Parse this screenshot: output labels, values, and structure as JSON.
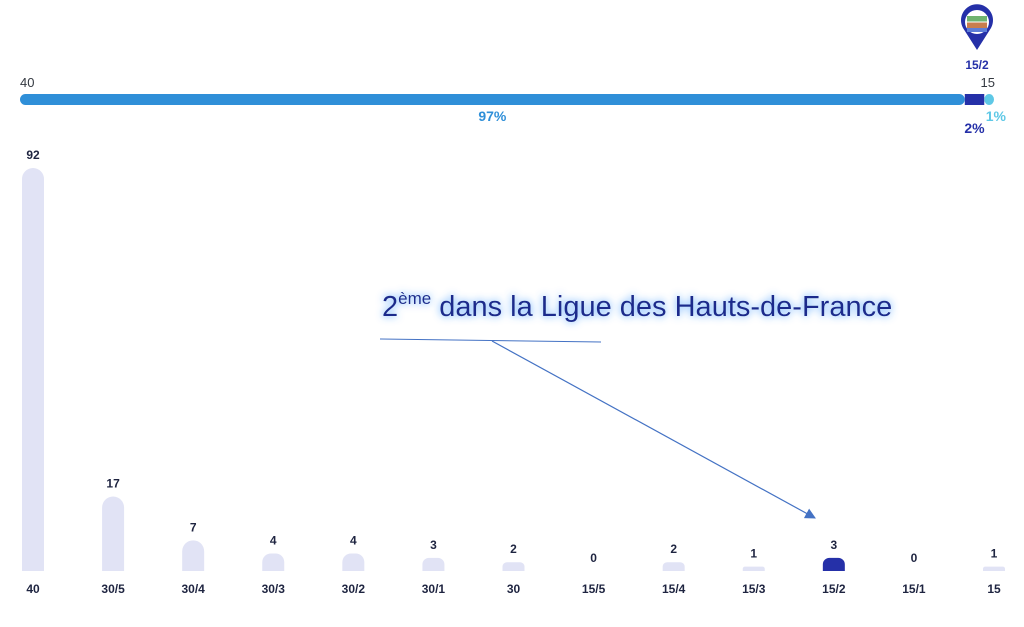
{
  "range_bar": {
    "left_label": "40",
    "right_label": "15",
    "marker_label": "15/2",
    "segments": [
      {
        "percent": 97,
        "label": "97%",
        "color": "#2f8fd8"
      },
      {
        "percent": 2,
        "label": "2%",
        "color": "#2530a8"
      },
      {
        "percent": 1,
        "label": "1%",
        "color": "#5ec8e6"
      }
    ]
  },
  "annotation": {
    "base": "2",
    "superscript": "ème",
    "text": "dans la Ligue des Hauts-de-France",
    "target_category": "15/2"
  },
  "chart_data": {
    "type": "bar",
    "categories": [
      "40",
      "30/5",
      "30/4",
      "30/3",
      "30/2",
      "30/1",
      "30",
      "15/5",
      "15/4",
      "15/3",
      "15/2",
      "15/1",
      "15"
    ],
    "values": [
      92,
      17,
      7,
      4,
      4,
      3,
      2,
      0,
      2,
      1,
      3,
      0,
      1
    ],
    "highlight_category": "15/2",
    "colors": {
      "bar": "#e1e3f5",
      "highlight": "#2530a8",
      "label": "#1e2440"
    },
    "ylim": [
      0,
      92
    ],
    "grid": false,
    "title": "",
    "xlabel": "",
    "ylabel": ""
  },
  "colors": {
    "accent_dark": "#2530a8",
    "accent_mid": "#2f8fd8",
    "accent_light": "#5ec8e6",
    "arrow": "#4472c4"
  },
  "icons": {
    "marker": "location-pin-icon"
  }
}
